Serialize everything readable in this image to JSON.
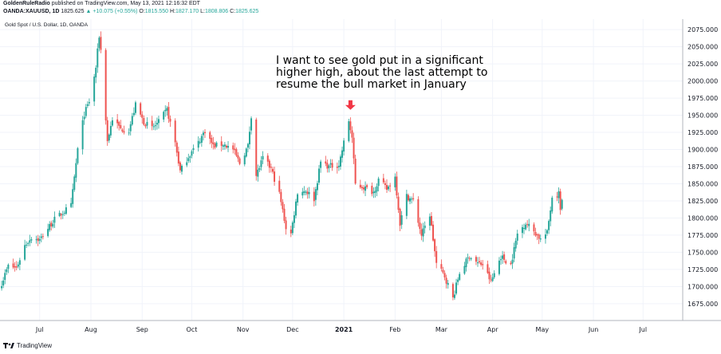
{
  "header": {
    "author": "GoldenRuleRadio",
    "published": "published on TradingView.com, May 13, 2021 12:16:32 EDT",
    "symbol": "OANDA:XAUUSD, 1D",
    "price": "1825.625",
    "change": "▲ +10.075 (+0.55%)",
    "ohlc": {
      "o_label": "O:",
      "o": "1815.550",
      "h_label": "H:",
      "h": "1827.170",
      "l_label": "L:",
      "l": "1808.806",
      "c_label": "C:",
      "c": "1825.625"
    }
  },
  "footer": {
    "brand": "TradingView"
  },
  "colors": {
    "up": "#26a69a",
    "down": "#ef5350",
    "arrow": "#f23645",
    "grid": "#f0f3fa",
    "axis": "#787b86"
  },
  "chart_data": {
    "type": "candlestick",
    "title": "Gold Spot / U.S. Dollar, 1D, OANDA",
    "ylim": [
      1655,
      2095
    ],
    "y_ticks": [
      "2075.000",
      "2050.000",
      "2025.000",
      "2000.000",
      "1975.000",
      "1950.000",
      "1925.000",
      "1900.000",
      "1875.000",
      "1850.000",
      "1825.000",
      "1800.000",
      "1775.000",
      "1750.000",
      "1725.000",
      "1700.000",
      "1675.000"
    ],
    "x_range": [
      "2020-06-07",
      "2021-07-25"
    ],
    "x_ticks": [
      {
        "date": "2020-07-01",
        "label": "Jul"
      },
      {
        "date": "2020-08-01",
        "label": "Aug"
      },
      {
        "date": "2020-09-01",
        "label": "Sep"
      },
      {
        "date": "2020-10-01",
        "label": "Oct"
      },
      {
        "date": "2020-11-01",
        "label": "Nov"
      },
      {
        "date": "2020-12-01",
        "label": "Dec"
      },
      {
        "date": "2021-01-01",
        "label": "2021"
      },
      {
        "date": "2021-02-01",
        "label": "Feb"
      },
      {
        "date": "2021-03-01",
        "label": "Mar"
      },
      {
        "date": "2021-04-01",
        "label": "Apr"
      },
      {
        "date": "2021-05-01",
        "label": "May"
      },
      {
        "date": "2021-06-01",
        "label": "Jun"
      },
      {
        "date": "2021-07-01",
        "label": "Jul"
      }
    ],
    "closes": [
      {
        "date": "2020-06-08",
        "close": 1705
      },
      {
        "date": "2020-06-12",
        "close": 1730
      },
      {
        "date": "2020-06-17",
        "close": 1727
      },
      {
        "date": "2020-06-22",
        "close": 1760
      },
      {
        "date": "2020-06-26",
        "close": 1772
      },
      {
        "date": "2020-07-01",
        "close": 1768
      },
      {
        "date": "2020-07-06",
        "close": 1785
      },
      {
        "date": "2020-07-10",
        "close": 1798
      },
      {
        "date": "2020-07-15",
        "close": 1808
      },
      {
        "date": "2020-07-20",
        "close": 1818
      },
      {
        "date": "2020-07-24",
        "close": 1900
      },
      {
        "date": "2020-07-28",
        "close": 1952
      },
      {
        "date": "2020-08-01",
        "close": 1976
      },
      {
        "date": "2020-08-04",
        "close": 2020
      },
      {
        "date": "2020-08-06",
        "close": 2066
      },
      {
        "date": "2020-08-07",
        "close": 2045
      },
      {
        "date": "2020-08-11",
        "close": 1912
      },
      {
        "date": "2020-08-14",
        "close": 1945
      },
      {
        "date": "2020-08-19",
        "close": 1930
      },
      {
        "date": "2020-08-24",
        "close": 1928
      },
      {
        "date": "2020-08-28",
        "close": 1965
      },
      {
        "date": "2020-09-02",
        "close": 1940
      },
      {
        "date": "2020-09-07",
        "close": 1931
      },
      {
        "date": "2020-09-11",
        "close": 1940
      },
      {
        "date": "2020-09-16",
        "close": 1958
      },
      {
        "date": "2020-09-21",
        "close": 1910
      },
      {
        "date": "2020-09-24",
        "close": 1868
      },
      {
        "date": "2020-09-29",
        "close": 1890
      },
      {
        "date": "2020-10-05",
        "close": 1910
      },
      {
        "date": "2020-10-09",
        "close": 1928
      },
      {
        "date": "2020-10-14",
        "close": 1905
      },
      {
        "date": "2020-10-20",
        "close": 1908
      },
      {
        "date": "2020-10-26",
        "close": 1900
      },
      {
        "date": "2020-10-30",
        "close": 1880
      },
      {
        "date": "2020-11-04",
        "close": 1905
      },
      {
        "date": "2020-11-06",
        "close": 1950
      },
      {
        "date": "2020-11-09",
        "close": 1862
      },
      {
        "date": "2020-11-13",
        "close": 1887
      },
      {
        "date": "2020-11-18",
        "close": 1872
      },
      {
        "date": "2020-11-23",
        "close": 1835
      },
      {
        "date": "2020-11-27",
        "close": 1786
      },
      {
        "date": "2020-11-30",
        "close": 1777
      },
      {
        "date": "2020-12-04",
        "close": 1838
      },
      {
        "date": "2020-12-09",
        "close": 1840
      },
      {
        "date": "2020-12-14",
        "close": 1828
      },
      {
        "date": "2020-12-18",
        "close": 1882
      },
      {
        "date": "2020-12-23",
        "close": 1875
      },
      {
        "date": "2020-12-29",
        "close": 1878
      },
      {
        "date": "2021-01-04",
        "close": 1942
      },
      {
        "date": "2021-01-06",
        "close": 1917
      },
      {
        "date": "2021-01-08",
        "close": 1849
      },
      {
        "date": "2021-01-13",
        "close": 1845
      },
      {
        "date": "2021-01-19",
        "close": 1838
      },
      {
        "date": "2021-01-22",
        "close": 1856
      },
      {
        "date": "2021-01-27",
        "close": 1842
      },
      {
        "date": "2021-02-01",
        "close": 1860
      },
      {
        "date": "2021-02-04",
        "close": 1792
      },
      {
        "date": "2021-02-08",
        "close": 1832
      },
      {
        "date": "2021-02-12",
        "close": 1825
      },
      {
        "date": "2021-02-17",
        "close": 1775
      },
      {
        "date": "2021-02-22",
        "close": 1805
      },
      {
        "date": "2021-02-26",
        "close": 1733
      },
      {
        "date": "2021-03-03",
        "close": 1715
      },
      {
        "date": "2021-03-08",
        "close": 1683
      },
      {
        "date": "2021-03-12",
        "close": 1720
      },
      {
        "date": "2021-03-18",
        "close": 1745
      },
      {
        "date": "2021-03-23",
        "close": 1734
      },
      {
        "date": "2021-03-26",
        "close": 1732
      },
      {
        "date": "2021-03-31",
        "close": 1707
      },
      {
        "date": "2021-04-06",
        "close": 1744
      },
      {
        "date": "2021-04-12",
        "close": 1732
      },
      {
        "date": "2021-04-16",
        "close": 1777
      },
      {
        "date": "2021-04-21",
        "close": 1793
      },
      {
        "date": "2021-04-26",
        "close": 1781
      },
      {
        "date": "2021-04-30",
        "close": 1769
      },
      {
        "date": "2021-05-04",
        "close": 1778
      },
      {
        "date": "2021-05-07",
        "close": 1831
      },
      {
        "date": "2021-05-11",
        "close": 1836
      },
      {
        "date": "2021-05-12",
        "close": 1815
      },
      {
        "date": "2021-05-13",
        "close": 1825
      }
    ],
    "annotation": {
      "lines": [
        "I want to see gold put in a significant",
        "higher high, about the last attempt to",
        "resume the bull market in January"
      ],
      "points_to": {
        "date": "2021-01-05",
        "price": 1958
      }
    }
  }
}
